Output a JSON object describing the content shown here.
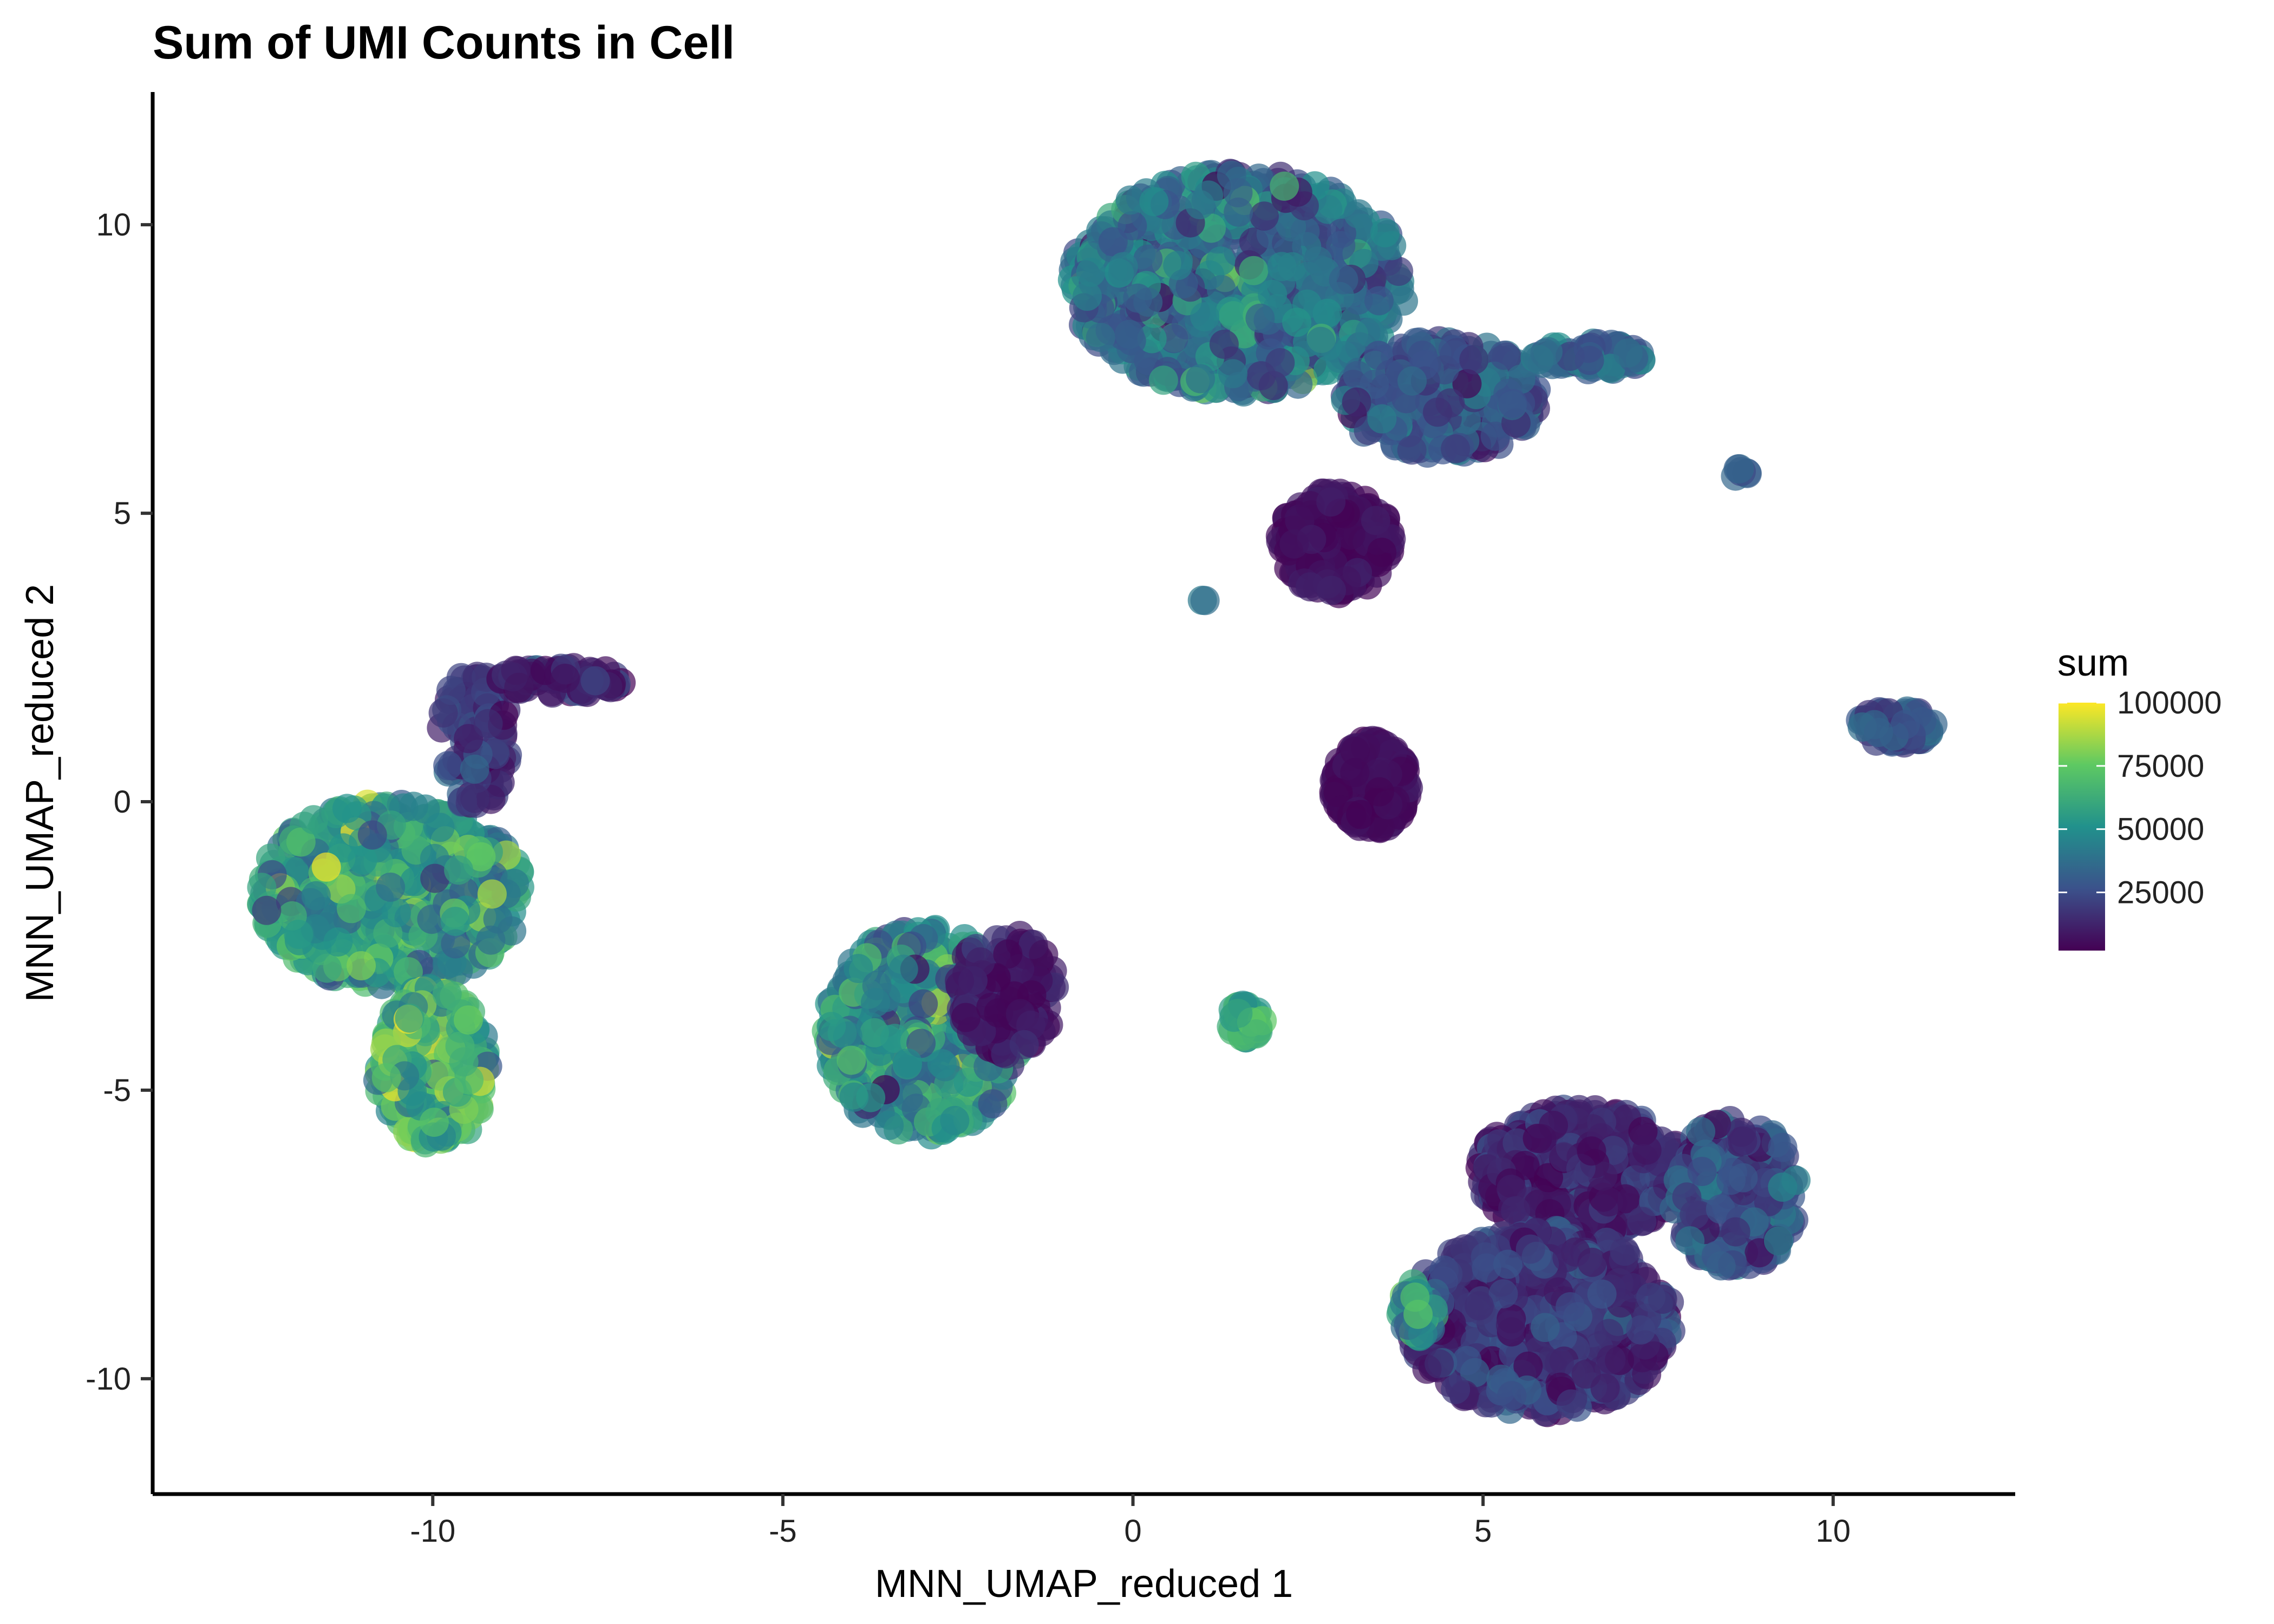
{
  "chart_data": {
    "type": "scatter",
    "title": "Sum of UMI Counts in Cell",
    "xlabel": "MNN_UMAP_reduced 1",
    "ylabel": "MNN_UMAP_reduced 2",
    "xlim": [
      -14,
      12.6
    ],
    "ylim": [
      -12,
      12.3
    ],
    "x_ticks": [
      -10,
      -5,
      0,
      5,
      10
    ],
    "x_tick_labels": [
      "-10",
      "-5",
      "0",
      "5",
      "10"
    ],
    "y_ticks": [
      -10,
      -5,
      0,
      5,
      10
    ],
    "y_tick_labels": [
      "-10",
      "-5",
      "0",
      "5",
      "10"
    ],
    "grid": false,
    "colorscale": "viridis",
    "colorscale_stops": [
      "#440154",
      "#3b528b",
      "#21918c",
      "#5ec962",
      "#fde725"
    ],
    "color_variable": "sum",
    "color_range": [
      2000,
      100000
    ],
    "legend": {
      "title": "sum",
      "position": "right",
      "ticks": [
        100000,
        75000,
        50000,
        25000
      ],
      "tick_labels": [
        "100000",
        "75000",
        "50000",
        "25000"
      ]
    },
    "clusters": [
      {
        "cx": -10.6,
        "cy": -1.6,
        "rx": 1.9,
        "ry": 1.6,
        "value": 55000,
        "spread": 15000,
        "n": 650
      },
      {
        "cx": -10.0,
        "cy": -4.6,
        "rx": 0.8,
        "ry": 1.4,
        "value": 65000,
        "spread": 15000,
        "n": 260
      },
      {
        "cx": -9.4,
        "cy": 1.1,
        "rx": 0.5,
        "ry": 1.2,
        "value": 18000,
        "spread": 10000,
        "n": 90
      },
      {
        "cx": -8.2,
        "cy": 2.1,
        "rx": 0.9,
        "ry": 0.25,
        "value": 12000,
        "spread": 8000,
        "n": 70
      },
      {
        "cx": -3.0,
        "cy": -4.0,
        "rx": 1.4,
        "ry": 1.8,
        "value": 48000,
        "spread": 16000,
        "n": 520
      },
      {
        "cx": -1.8,
        "cy": -3.3,
        "rx": 0.7,
        "ry": 1.1,
        "value": 9000,
        "spread": 6000,
        "n": 120
      },
      {
        "cx": 1.5,
        "cy": 9.0,
        "rx": 2.4,
        "ry": 1.9,
        "value": 38000,
        "spread": 14000,
        "n": 850
      },
      {
        "cx": 4.4,
        "cy": 7.0,
        "rx": 1.4,
        "ry": 1.0,
        "value": 28000,
        "spread": 10000,
        "n": 320
      },
      {
        "cx": 6.5,
        "cy": 7.7,
        "rx": 0.8,
        "ry": 0.25,
        "value": 34000,
        "spread": 10000,
        "n": 90
      },
      {
        "cx": 2.9,
        "cy": 4.5,
        "rx": 0.8,
        "ry": 0.9,
        "value": 6000,
        "spread": 3000,
        "n": 260
      },
      {
        "cx": 3.4,
        "cy": 0.3,
        "rx": 0.55,
        "ry": 0.8,
        "value": 5000,
        "spread": 2500,
        "n": 240
      },
      {
        "cx": 1.6,
        "cy": -3.8,
        "rx": 0.25,
        "ry": 0.3,
        "value": 62000,
        "spread": 9000,
        "n": 45
      },
      {
        "cx": 10.9,
        "cy": 1.3,
        "rx": 0.55,
        "ry": 0.3,
        "value": 26000,
        "spread": 8000,
        "n": 90
      },
      {
        "cx": 8.7,
        "cy": 5.7,
        "rx": 0.12,
        "ry": 0.1,
        "value": 30000,
        "spread": 5000,
        "n": 6
      },
      {
        "cx": 1.0,
        "cy": 3.5,
        "rx": 0.05,
        "ry": 0.05,
        "value": 40000,
        "spread": 3000,
        "n": 2
      },
      {
        "cx": 6.4,
        "cy": -6.4,
        "rx": 1.5,
        "ry": 1.1,
        "value": 12000,
        "spread": 8000,
        "n": 520
      },
      {
        "cx": 8.6,
        "cy": -6.8,
        "rx": 0.9,
        "ry": 1.3,
        "value": 26000,
        "spread": 10000,
        "n": 260
      },
      {
        "cx": 5.8,
        "cy": -9.0,
        "rx": 1.9,
        "ry": 1.6,
        "value": 17000,
        "spread": 9000,
        "n": 650
      },
      {
        "cx": 4.1,
        "cy": -8.8,
        "rx": 0.3,
        "ry": 0.5,
        "value": 52000,
        "spread": 12000,
        "n": 40
      }
    ]
  }
}
